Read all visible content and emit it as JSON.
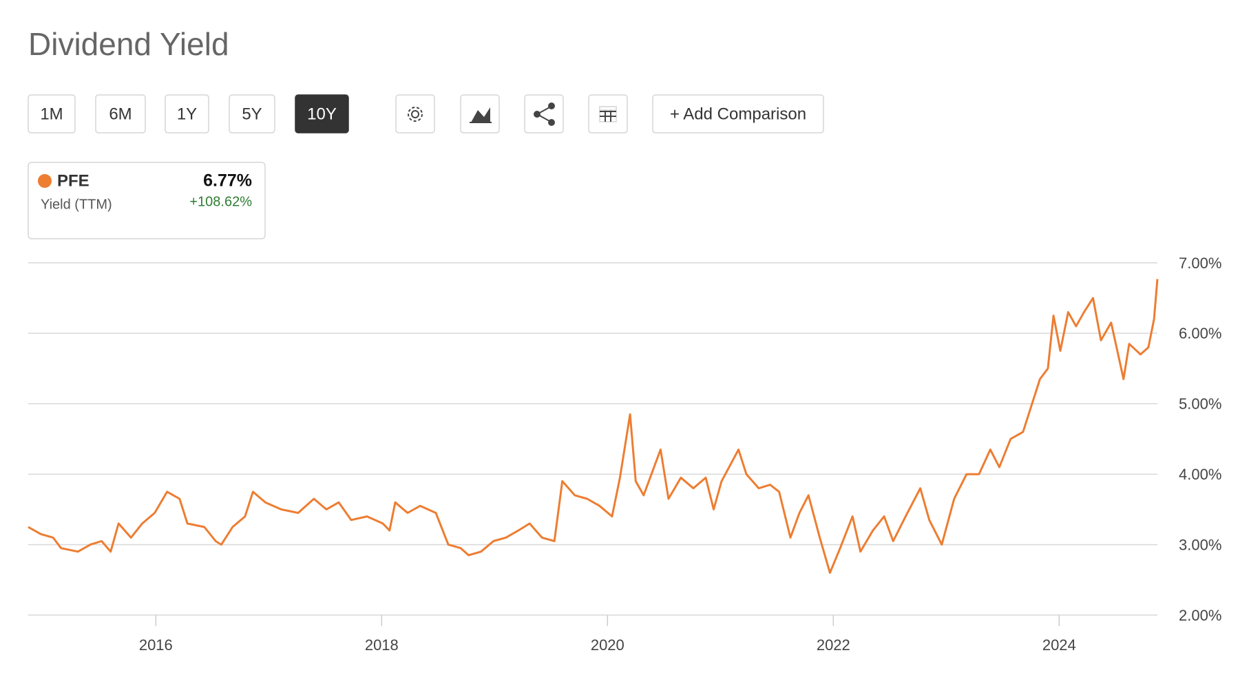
{
  "toolbar": {
    "ranges": [
      "1M",
      "6M",
      "1Y",
      "5Y",
      "10Y"
    ],
    "active_range": "10Y",
    "comparison": "+ Add Comparison"
  },
  "chart_data": {
    "type": "line",
    "title": "Dividend Yield",
    "legend": {
      "metric": "Yield (TTM)",
      "value": "6.77%",
      "change": "+108.62%"
    },
    "x": [
      2014.87,
      2014.98,
      2015.09,
      2015.16,
      2015.31,
      2015.42,
      2015.52,
      2015.6,
      2015.67,
      2015.78,
      2015.88,
      2015.99,
      2016.1,
      2016.21,
      2016.28,
      2016.43,
      2016.53,
      2016.58,
      2016.68,
      2016.79,
      2016.86,
      2016.97,
      2017.11,
      2017.26,
      2017.4,
      2017.51,
      2017.62,
      2017.73,
      2017.87,
      2018.01,
      2018.07,
      2018.12,
      2018.23,
      2018.34,
      2018.48,
      2018.59,
      2018.7,
      2018.77,
      2018.88,
      2018.99,
      2019.1,
      2019.21,
      2019.31,
      2019.42,
      2019.53,
      2019.6,
      2019.71,
      2019.82,
      2019.93,
      2020.04,
      2020.11,
      2020.2,
      2020.25,
      2020.32,
      2020.47,
      2020.54,
      2020.65,
      2020.76,
      2020.87,
      2020.94,
      2021.01,
      2021.16,
      2021.23,
      2021.34,
      2021.44,
      2021.52,
      2021.62,
      2021.7,
      2021.78,
      2021.88,
      2021.97,
      2022.06,
      2022.17,
      2022.24,
      2022.35,
      2022.45,
      2022.53,
      2022.64,
      2022.77,
      2022.85,
      2022.96,
      2023.07,
      2023.18,
      2023.29,
      2023.39,
      2023.47,
      2023.57,
      2023.68,
      2023.75,
      2023.83,
      2023.9,
      2023.95,
      2024.01,
      2024.08,
      2024.15,
      2024.22,
      2024.3,
      2024.37,
      2024.46,
      2024.57,
      2024.62,
      2024.72,
      2024.79,
      2024.84,
      2024.87
    ],
    "series": [
      {
        "name": "PFE",
        "color": "#ed7d31",
        "values": [
          3.25,
          3.15,
          3.1,
          2.95,
          2.9,
          3.0,
          3.05,
          2.9,
          3.3,
          3.1,
          3.3,
          3.45,
          3.75,
          3.65,
          3.3,
          3.25,
          3.05,
          3.0,
          3.25,
          3.4,
          3.75,
          3.6,
          3.5,
          3.45,
          3.65,
          3.5,
          3.6,
          3.35,
          3.4,
          3.3,
          3.2,
          3.6,
          3.45,
          3.55,
          3.45,
          3.0,
          2.95,
          2.85,
          2.9,
          3.05,
          3.1,
          3.2,
          3.3,
          3.1,
          3.05,
          3.9,
          3.7,
          3.65,
          3.55,
          3.4,
          3.95,
          4.85,
          3.9,
          3.7,
          4.35,
          3.65,
          3.95,
          3.8,
          3.95,
          3.5,
          3.9,
          4.35,
          4.0,
          3.8,
          3.85,
          3.75,
          3.1,
          3.45,
          3.7,
          3.1,
          2.6,
          2.95,
          3.4,
          2.9,
          3.2,
          3.4,
          3.05,
          3.4,
          3.8,
          3.35,
          3.0,
          3.65,
          4.0,
          4.0,
          4.35,
          4.1,
          4.5,
          4.6,
          4.95,
          5.35,
          5.5,
          6.25,
          5.75,
          6.3,
          6.1,
          6.3,
          6.5,
          5.9,
          6.15,
          5.35,
          5.85,
          5.7,
          5.8,
          6.2,
          6.77
        ]
      }
    ],
    "xlim": [
      2014.87,
      2024.87
    ],
    "xticks": [
      2016,
      2018,
      2020,
      2022,
      2024
    ],
    "ylim": [
      2,
      7
    ],
    "yticks": [
      {
        "value": 2,
        "label": "2.00%"
      },
      {
        "value": 3,
        "label": "3.00%"
      },
      {
        "value": 4,
        "label": "4.00%"
      },
      {
        "value": 5,
        "label": "5.00%"
      },
      {
        "value": 6,
        "label": "6.00%"
      },
      {
        "value": 7,
        "label": "7.00%"
      }
    ],
    "grid": true
  }
}
